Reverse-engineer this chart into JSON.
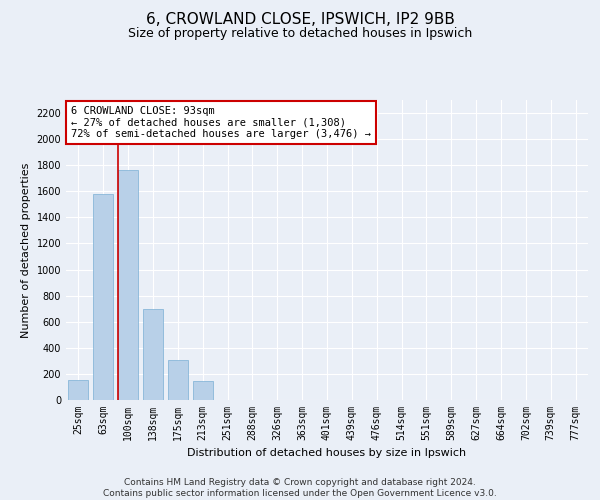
{
  "title1": "6, CROWLAND CLOSE, IPSWICH, IP2 9BB",
  "title2": "Size of property relative to detached houses in Ipswich",
  "xlabel": "Distribution of detached houses by size in Ipswich",
  "ylabel": "Number of detached properties",
  "categories": [
    "25sqm",
    "63sqm",
    "100sqm",
    "138sqm",
    "175sqm",
    "213sqm",
    "251sqm",
    "288sqm",
    "326sqm",
    "363sqm",
    "401sqm",
    "439sqm",
    "476sqm",
    "514sqm",
    "551sqm",
    "589sqm",
    "627sqm",
    "664sqm",
    "702sqm",
    "739sqm",
    "777sqm"
  ],
  "values": [
    150,
    1580,
    1760,
    700,
    310,
    145,
    0,
    0,
    0,
    0,
    0,
    0,
    0,
    0,
    0,
    0,
    0,
    0,
    0,
    0,
    0
  ],
  "bar_color": "#b8d0e8",
  "bar_edge_color": "#7aafd4",
  "vline_color": "#cc0000",
  "vline_x": 1.6,
  "annotation_text": "6 CROWLAND CLOSE: 93sqm\n← 27% of detached houses are smaller (1,308)\n72% of semi-detached houses are larger (3,476) →",
  "annotation_box_color": "#ffffff",
  "annotation_box_edge": "#cc0000",
  "ylim": [
    0,
    2300
  ],
  "yticks": [
    0,
    200,
    400,
    600,
    800,
    1000,
    1200,
    1400,
    1600,
    1800,
    2000,
    2200
  ],
  "bg_color": "#eaeff7",
  "plot_bg_color": "#eaeff7",
  "footer": "Contains HM Land Registry data © Crown copyright and database right 2024.\nContains public sector information licensed under the Open Government Licence v3.0.",
  "title1_fontsize": 11,
  "title2_fontsize": 9,
  "xlabel_fontsize": 8,
  "ylabel_fontsize": 8,
  "tick_fontsize": 7,
  "footer_fontsize": 6.5,
  "ann_fontsize": 7.5
}
